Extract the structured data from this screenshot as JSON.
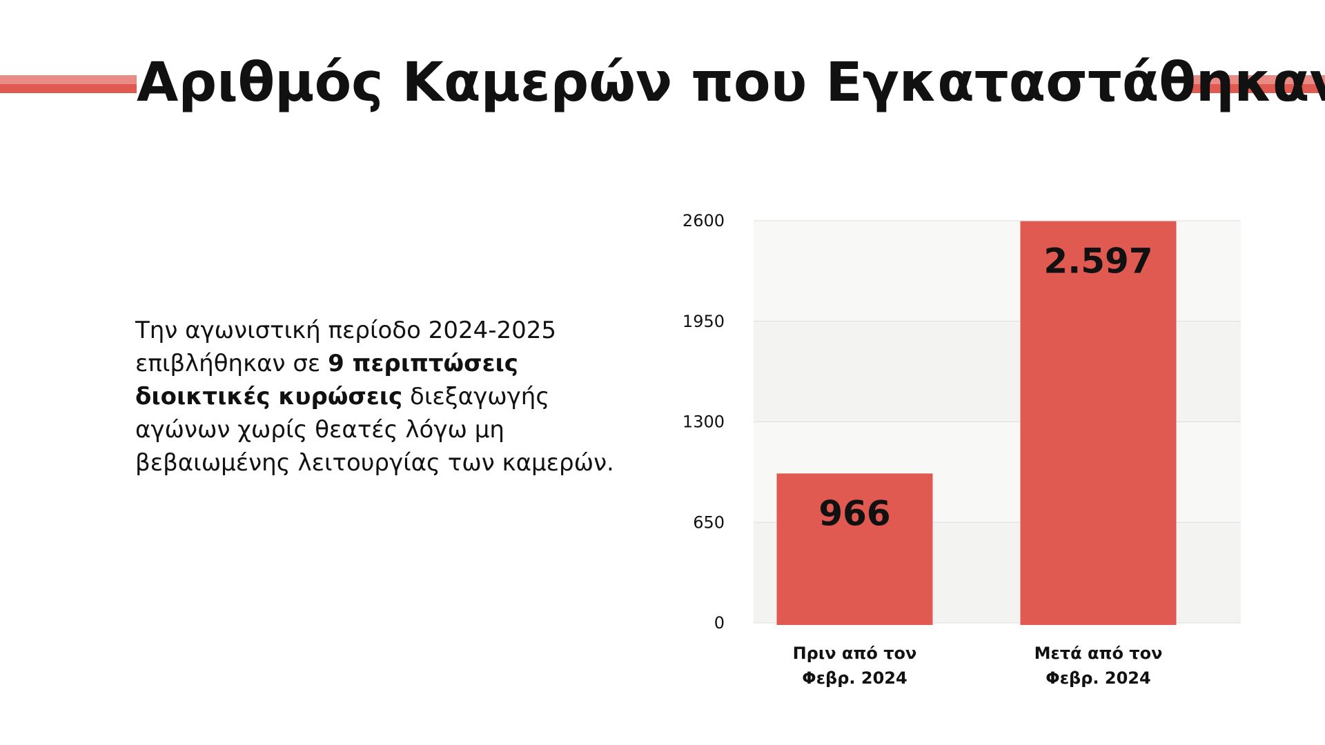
{
  "title": "Αριθμός Καμερών που Εγκαταστάθηκαν",
  "description": {
    "part1": "Την αγωνιστική περίοδο 2024-2025 επιβλήθηκαν σε ",
    "bold": "9 περιπτώσεις διοικτικές κυρώσεις",
    "part2": " διεξαγωγής αγώνων χωρίς θεατές λόγω μη βεβαιωμένης λειτουργίας των καμερών."
  },
  "colors": {
    "bar": "#e05a52",
    "accent_light": "#e98c86",
    "text": "#111111"
  },
  "chart_data": {
    "type": "bar",
    "categories": [
      "Πριν από τον Φεβρ. 2024",
      "Μετά από τον Φεβρ. 2024"
    ],
    "category_lines": [
      [
        "Πριν από τον",
        "Φεβρ. 2024"
      ],
      [
        "Μετά από τον",
        "Φεβρ. 2024"
      ]
    ],
    "values": [
      966,
      2597
    ],
    "data_labels": [
      "966",
      "2.597"
    ],
    "yticks": [
      0,
      650,
      1300,
      1950,
      2600
    ],
    "ylim": [
      0,
      2600
    ],
    "title": "",
    "xlabel": "",
    "ylabel": "",
    "grid": true,
    "legend": "none"
  }
}
